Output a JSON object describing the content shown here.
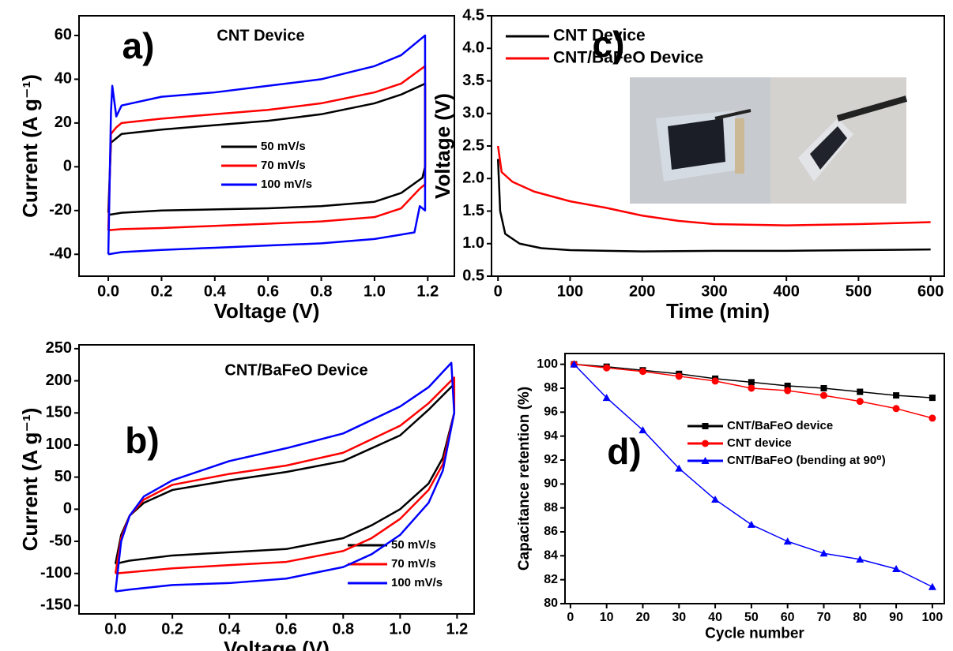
{
  "chart_data": [
    {
      "type": "line",
      "panel_label": "a)",
      "title": "CNT Device",
      "xlabel": "Voltage (V)",
      "ylabel": "Current (A g⁻¹)",
      "xlim": [
        -0.11,
        1.3
      ],
      "ylim": [
        -50,
        69
      ],
      "xticks": [
        {
          "value": 0,
          "label": "0.0"
        },
        0.2,
        0.4,
        0.6,
        0.8,
        {
          "value": 1,
          "label": "1.0"
        },
        1.2
      ],
      "yticks": [
        -40,
        -20,
        0,
        20,
        40,
        60
      ],
      "series": [
        {
          "name": "50 mV/s",
          "color": "#000000",
          "x": [
            0,
            0.01,
            0.05,
            0.2,
            0.4,
            0.6,
            0.8,
            1.0,
            1.1,
            1.19,
            1.19,
            1.18,
            1.1,
            1.0,
            0.8,
            0.6,
            0.4,
            0.2,
            0.05,
            0
          ],
          "values": [
            -21,
            11,
            15,
            17,
            19,
            21,
            24,
            29,
            33,
            38,
            0,
            -5,
            -12,
            -16,
            -18,
            -19,
            -19.5,
            -20,
            -21,
            -22
          ]
        },
        {
          "name": "70 mV/s",
          "color": "#ff0000",
          "x": [
            0,
            0.01,
            0.03,
            0.05,
            0.2,
            0.4,
            0.6,
            0.8,
            1.0,
            1.1,
            1.19,
            1.19,
            1.17,
            1.1,
            1.0,
            0.8,
            0.6,
            0.4,
            0.2,
            0.05,
            0
          ],
          "values": [
            -29,
            15,
            18,
            20,
            22,
            24,
            26,
            29,
            34,
            38,
            46,
            -8,
            -10,
            -19,
            -23,
            -25,
            -26,
            -27,
            -28,
            -28.5,
            -29
          ]
        },
        {
          "name": "100 mV/s",
          "color": "#0000ff",
          "x": [
            0,
            0.01,
            0.015,
            0.03,
            0.05,
            0.2,
            0.4,
            0.6,
            0.8,
            1.0,
            1.1,
            1.19,
            1.19,
            1.17,
            1.15,
            1.0,
            0.8,
            0.6,
            0.4,
            0.2,
            0.05,
            0
          ],
          "values": [
            -40,
            25,
            37,
            23,
            28,
            32,
            34,
            37,
            40,
            46,
            51,
            60,
            -20,
            -18,
            -30,
            -33,
            -35,
            -36,
            -37,
            -38,
            -39,
            -40
          ]
        }
      ]
    },
    {
      "type": "line",
      "panel_label": "b)",
      "title": "CNT/BaFeO Device",
      "xlabel": "Voltage (V)",
      "ylabel": "Current (A g⁻¹)",
      "xlim": [
        -0.128,
        1.26
      ],
      "ylim": [
        -163,
        256
      ],
      "xticks": [
        {
          "value": 0,
          "label": "0.0"
        },
        0.2,
        0.4,
        0.6,
        0.8,
        {
          "value": 1,
          "label": "1.0"
        },
        1.2
      ],
      "yticks": [
        -150,
        -100,
        -50,
        0,
        50,
        100,
        150,
        200,
        250
      ],
      "series": [
        {
          "name": "50 mV/s",
          "color": "#000000",
          "x": [
            0,
            0.02,
            0.05,
            0.1,
            0.2,
            0.4,
            0.6,
            0.8,
            1.0,
            1.1,
            1.19,
            1.19,
            1.15,
            1.1,
            1.0,
            0.9,
            0.8,
            0.6,
            0.4,
            0.2,
            0.05,
            0
          ],
          "values": [
            -85,
            -40,
            -10,
            10,
            30,
            45,
            58,
            75,
            115,
            155,
            195,
            150,
            80,
            40,
            0,
            -25,
            -45,
            -62,
            -67,
            -72,
            -80,
            -85
          ]
        },
        {
          "name": "70 mV/s",
          "color": "#ff0000",
          "x": [
            0,
            0.02,
            0.05,
            0.1,
            0.2,
            0.4,
            0.6,
            0.8,
            1.0,
            1.1,
            1.19,
            1.19,
            1.15,
            1.1,
            1.0,
            0.9,
            0.8,
            0.6,
            0.4,
            0.2,
            0.05,
            0
          ],
          "values": [
            -100,
            -45,
            -10,
            15,
            38,
            55,
            68,
            88,
            130,
            165,
            205,
            150,
            70,
            30,
            -15,
            -45,
            -65,
            -82,
            -87,
            -92,
            -98,
            -100
          ]
        },
        {
          "name": "100 mV/s",
          "color": "#0000ff",
          "x": [
            0,
            0.02,
            0.05,
            0.1,
            0.2,
            0.4,
            0.6,
            0.8,
            1.0,
            1.1,
            1.18,
            1.19,
            1.15,
            1.1,
            1.0,
            0.9,
            0.8,
            0.6,
            0.4,
            0.2,
            0.05,
            0
          ],
          "values": [
            -128,
            -50,
            -10,
            20,
            45,
            75,
            95,
            118,
            160,
            190,
            228,
            150,
            60,
            10,
            -40,
            -70,
            -90,
            -108,
            -115,
            -118,
            -125,
            -128
          ]
        }
      ]
    },
    {
      "type": "line",
      "panel_label": "c)",
      "xlabel": "Time (min)",
      "ylabel": "Voltage (V)",
      "xlim": [
        -9,
        619
      ],
      "ylim": [
        0.5,
        4.5
      ],
      "xticks": [
        0,
        100,
        200,
        300,
        400,
        500,
        600
      ],
      "yticks": [
        0.5,
        {
          "value": 1,
          "label": "1.0"
        },
        1.5,
        {
          "value": 2,
          "label": "2.0"
        },
        2.5,
        {
          "value": 3,
          "label": "3.0"
        },
        3.5,
        {
          "value": 4,
          "label": "4.0"
        },
        4.5
      ],
      "series": [
        {
          "name": "CNT Device",
          "color": "#000000",
          "x": [
            0,
            3,
            10,
            30,
            60,
            100,
            200,
            300,
            400,
            500,
            600
          ],
          "values": [
            2.3,
            1.5,
            1.15,
            1.0,
            0.93,
            0.9,
            0.88,
            0.89,
            0.89,
            0.9,
            0.91
          ]
        },
        {
          "name": "CNT/BaFeO Device",
          "color": "#ff0000",
          "x": [
            0,
            5,
            20,
            50,
            100,
            150,
            200,
            250,
            300,
            400,
            500,
            600
          ],
          "values": [
            2.5,
            2.1,
            1.95,
            1.8,
            1.65,
            1.55,
            1.43,
            1.35,
            1.3,
            1.28,
            1.3,
            1.33
          ]
        }
      ]
    },
    {
      "type": "line",
      "panel_label": "d)",
      "xlabel": "Cycle number",
      "ylabel": "Capacitance retention (%)",
      "xlim": [
        -1.5,
        103.3
      ],
      "ylim": [
        80,
        100.9
      ],
      "xticks": [
        0,
        10,
        20,
        30,
        40,
        50,
        60,
        70,
        80,
        90,
        100
      ],
      "yticks": [
        80,
        82,
        84,
        86,
        88,
        90,
        92,
        94,
        96,
        98,
        100
      ],
      "x": [
        1,
        10,
        20,
        30,
        40,
        50,
        60,
        70,
        80,
        90,
        100
      ],
      "series": [
        {
          "name": "CNT/BaFeO device",
          "color": "#000000",
          "marker": "square",
          "values": [
            100,
            99.8,
            99.5,
            99.2,
            98.8,
            98.5,
            98.2,
            98,
            97.7,
            97.4,
            97.2
          ]
        },
        {
          "name": "CNT device",
          "color": "#ff0000",
          "marker": "circle",
          "values": [
            100,
            99.7,
            99.4,
            99,
            98.6,
            98,
            97.8,
            97.4,
            96.9,
            96.3,
            95.5
          ]
        },
        {
          "name": "CNT/BaFeO (bending at 90⁰)",
          "color": "#0000ff",
          "marker": "triangle",
          "values": [
            100,
            97.2,
            94.5,
            91.3,
            88.7,
            86.6,
            85.2,
            84.2,
            83.7,
            82.9,
            81.4
          ]
        }
      ]
    }
  ]
}
